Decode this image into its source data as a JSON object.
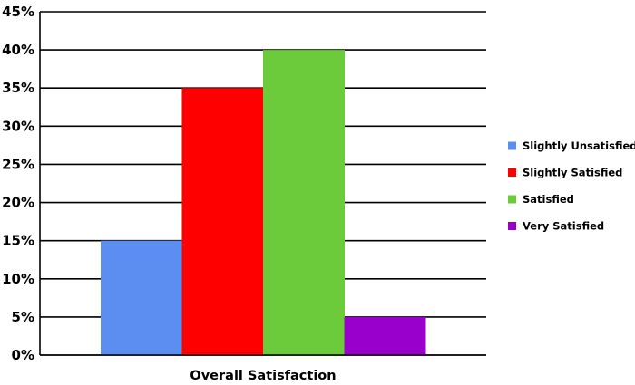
{
  "chart_data": {
    "type": "bar",
    "title": "",
    "xlabel": "Overall Satisfaction",
    "ylabel": "",
    "categories": [
      "Overall Satisfaction"
    ],
    "series": [
      {
        "name": "Slightly  Unsatisfied",
        "values": [
          15
        ],
        "color": "#5b8ef0"
      },
      {
        "name": "Slightly Satisfied",
        "values": [
          35
        ],
        "color": "#fe0000"
      },
      {
        "name": "Satisfied",
        "values": [
          40
        ],
        "color": "#6bcb3b"
      },
      {
        "name": "Very Satisfied",
        "values": [
          5
        ],
        "color": "#9a00cc"
      }
    ],
    "ylim": [
      0,
      45
    ],
    "yticks": [
      0,
      5,
      10,
      15,
      20,
      25,
      30,
      35,
      40,
      45
    ],
    "ytick_labels": [
      "0%",
      "5%",
      "10%",
      "15%",
      "20%",
      "25%",
      "30%",
      "35%",
      "40%",
      "45%"
    ],
    "grid": true,
    "legend_position": "right"
  }
}
